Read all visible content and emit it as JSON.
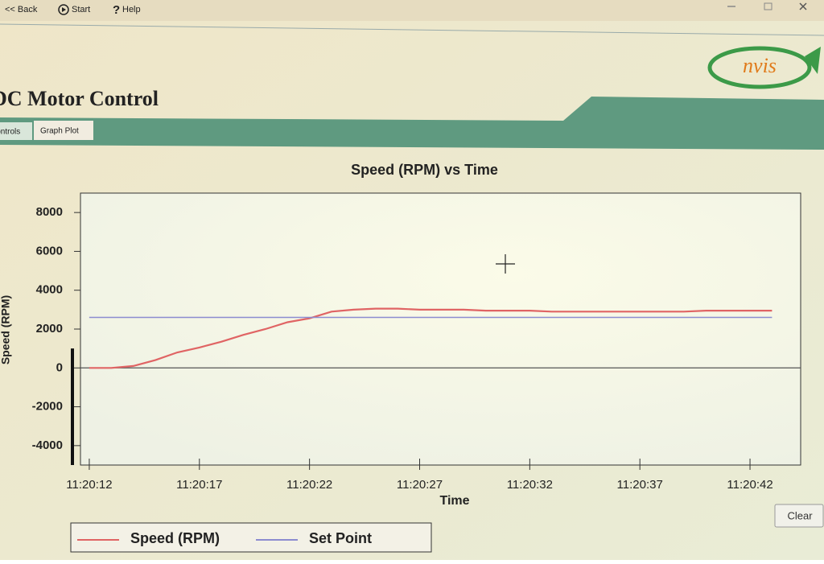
{
  "toolbar": [
    "<< Back",
    "Start",
    "Help"
  ],
  "app": {
    "title": "DC Motor Control",
    "logo": "nvis"
  },
  "tabs": [
    "Controls",
    "Graph Plot"
  ],
  "buttons": {
    "clear": "Clear"
  },
  "chart_data": {
    "type": "line",
    "title": "Speed (RPM) vs Time",
    "x_label": "Time",
    "y_label": "Speed (RPM)",
    "x": [
      "11:20:12",
      "11:20:13",
      "11:20:14",
      "11:20:15",
      "11:20:16",
      "11:20:17",
      "11:20:18",
      "11:20:19",
      "11:20:20",
      "11:20:21",
      "11:20:22",
      "11:20:23",
      "11:20:24",
      "11:20:25",
      "11:20:26",
      "11:20:27",
      "11:20:28",
      "11:20:29",
      "11:20:30",
      "11:20:31",
      "11:20:32",
      "11:20:33",
      "11:20:34",
      "11:20:35",
      "11:20:36",
      "11:20:37",
      "11:20:38",
      "11:20:39",
      "11:20:40",
      "11:20:41",
      "11:20:42",
      "11:20:43"
    ],
    "series": [
      {
        "name": "Speed (RPM)",
        "color": "#e06464",
        "values": [
          0,
          0,
          100,
          400,
          800,
          1050,
          1350,
          1700,
          2000,
          2350,
          2550,
          2900,
          3000,
          3050,
          3050,
          3000,
          3000,
          3000,
          2950,
          2950,
          2950,
          2900,
          2900,
          2900,
          2900,
          2900,
          2900,
          2900,
          2950,
          2950,
          2950,
          2950
        ]
      },
      {
        "name": "Set Point",
        "color": "#8c8cd0",
        "values": [
          2600,
          2600,
          2600,
          2600,
          2600,
          2600,
          2600,
          2600,
          2600,
          2600,
          2600,
          2600,
          2600,
          2600,
          2600,
          2600,
          2600,
          2600,
          2600,
          2600,
          2600,
          2600,
          2600,
          2600,
          2600,
          2600,
          2600,
          2600,
          2600,
          2600,
          2600,
          2600
        ]
      }
    ],
    "xlim": [
      "11:20:11.6",
      "11:20:44.3"
    ],
    "xticks": [
      "11:20:12",
      "11:20:17",
      "11:20:22",
      "11:20:27",
      "11:20:32",
      "11:20:37",
      "11:20:42"
    ],
    "ylim": [
      -5000,
      9000
    ],
    "yticks": [
      -4000,
      -2000,
      0,
      2000,
      4000,
      6000,
      8000
    ]
  }
}
